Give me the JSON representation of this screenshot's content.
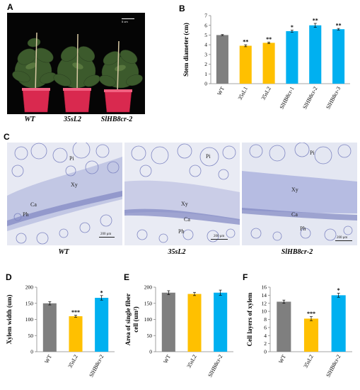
{
  "panel_letters": {
    "A": "A",
    "B": "B",
    "C": "C",
    "D": "D",
    "E": "E",
    "F": "F"
  },
  "photo_A": {
    "scale_label": "5 cm",
    "captions": [
      "WT",
      "35sL2",
      "SlHB8cr-2"
    ],
    "pot_color": "#d9294f"
  },
  "micrographs": {
    "captions": [
      "WT",
      "35sL2",
      "SlHB8cr-2"
    ],
    "tissue_labels": {
      "wt": [
        "Pi",
        "Xy",
        "Ca",
        "Ph"
      ],
      "l2": [
        "Pi",
        "Xy",
        "Ca",
        "Ph"
      ],
      "cr": [
        "Pi",
        "Xy",
        "Ca",
        "Ph"
      ]
    },
    "scale_labels": [
      "200 μm",
      "200 μm",
      "200 μm"
    ],
    "stain_color": "#7f86c2"
  },
  "colors": {
    "wt": "#7f7f7f",
    "l2": "#ffc000",
    "cr": "#00b0f0"
  },
  "chart_data": [
    {
      "id": "B",
      "type": "bar",
      "categories": [
        "WT",
        "35sL1",
        "35sL2",
        "SlHB8cr-1",
        "SlHB8cr-2",
        "SlHB8cr-3"
      ],
      "values": [
        5.0,
        3.9,
        4.2,
        5.4,
        6.0,
        5.6
      ],
      "errors": [
        0.05,
        0.1,
        0.08,
        0.1,
        0.2,
        0.08
      ],
      "significance": [
        "",
        "**",
        "**",
        "*",
        "**",
        "**"
      ],
      "bar_colors": [
        "wt",
        "l2",
        "l2",
        "cr",
        "cr",
        "cr"
      ],
      "ylabel": "Stem diameter (cm)",
      "ylim": [
        0,
        7
      ],
      "yticks": [
        0,
        1,
        2,
        3,
        4,
        5,
        6,
        7
      ],
      "grid": false
    },
    {
      "id": "D",
      "type": "bar",
      "categories": [
        "WT",
        "35sL2",
        "SlHB8cr-2"
      ],
      "values": [
        150,
        110,
        167
      ],
      "errors": [
        5,
        3,
        7
      ],
      "significance": [
        "",
        "***",
        "*"
      ],
      "bar_colors": [
        "wt",
        "l2",
        "cr"
      ],
      "ylabel": "Xylem width (um)",
      "ylim": [
        0,
        200
      ],
      "yticks": [
        0,
        50,
        100,
        150,
        200
      ],
      "grid": false
    },
    {
      "id": "E",
      "type": "bar",
      "categories": [
        "WT",
        "35sL2",
        "SlHB8cr-2"
      ],
      "values": [
        183,
        179,
        183
      ],
      "errors": [
        6,
        5,
        8
      ],
      "significance": [
        "",
        "",
        ""
      ],
      "bar_colors": [
        "wt",
        "l2",
        "cr"
      ],
      "ylabel": "Area of single fiber cell (um²)",
      "ylabel_lines": [
        "Area of single fiber",
        "cell (um²)"
      ],
      "ylim": [
        0,
        200
      ],
      "yticks": [
        0,
        50,
        100,
        150,
        200
      ],
      "grid": false
    },
    {
      "id": "F",
      "type": "bar",
      "categories": [
        "WT",
        "35sL2",
        "SlHB8cr-2"
      ],
      "values": [
        12.4,
        8.2,
        14.0
      ],
      "errors": [
        0.4,
        0.5,
        0.5
      ],
      "significance": [
        "",
        "***",
        "*"
      ],
      "bar_colors": [
        "wt",
        "l2",
        "cr"
      ],
      "ylabel": "Cell layers of xylem",
      "ylim": [
        0,
        16
      ],
      "yticks": [
        0,
        2,
        4,
        6,
        8,
        10,
        12,
        14,
        16
      ],
      "grid": false
    }
  ]
}
